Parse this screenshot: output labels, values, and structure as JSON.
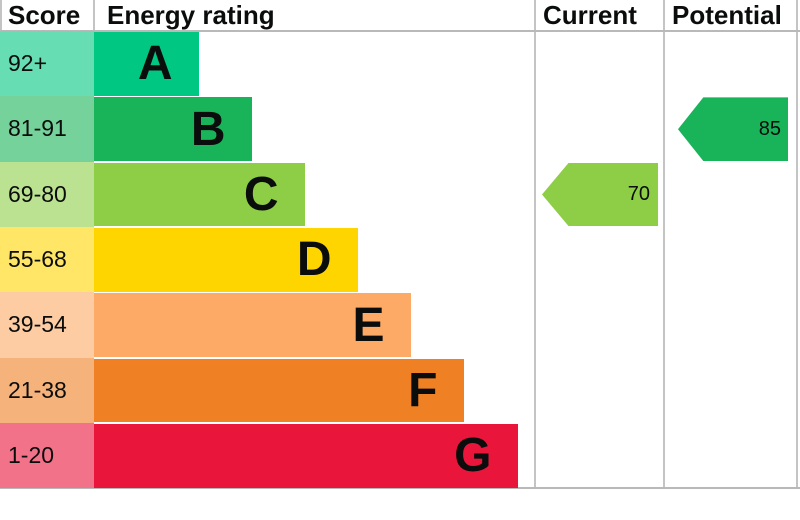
{
  "header": {
    "score_label": "Score",
    "rating_label": "Energy rating",
    "current_label": "Current",
    "potential_label": "Potential"
  },
  "bands": [
    {
      "score": "92+",
      "letter": "A",
      "color": "#00c781",
      "tint": "#66ddb3"
    },
    {
      "score": "81-91",
      "letter": "B",
      "color": "#19b459",
      "tint": "#75d29b"
    },
    {
      "score": "69-80",
      "letter": "C",
      "color": "#8dce46",
      "tint": "#bbe290"
    },
    {
      "score": "55-68",
      "letter": "D",
      "color": "#ffd500",
      "tint": "#ffe666"
    },
    {
      "score": "39-54",
      "letter": "E",
      "color": "#fcaa65",
      "tint": "#fdcca3"
    },
    {
      "score": "21-38",
      "letter": "F",
      "color": "#ef8023",
      "tint": "#f5b37b"
    },
    {
      "score": "1-20",
      "letter": "G",
      "color": "#e9153b",
      "tint": "#f27389"
    }
  ],
  "current": {
    "value": "70",
    "band": "C",
    "color": "#8dce46"
  },
  "potential": {
    "value": "85",
    "band": "B",
    "color": "#19b459"
  },
  "chart_data": {
    "type": "bar",
    "title": "Energy rating",
    "orientation": "horizontal",
    "columns": [
      "Score",
      "Energy rating",
      "Current",
      "Potential"
    ],
    "categories": [
      "A",
      "B",
      "C",
      "D",
      "E",
      "F",
      "G"
    ],
    "score_ranges": [
      "92+",
      "81-91",
      "69-80",
      "55-68",
      "39-54",
      "21-38",
      "1-20"
    ],
    "band_colors": [
      "#00c781",
      "#19b459",
      "#8dce46",
      "#ffd500",
      "#fcaa65",
      "#ef8023",
      "#e9153b"
    ],
    "bar_lengths_relative": [
      1,
      1.5,
      2,
      2.5,
      3,
      3.5,
      4
    ],
    "markers": [
      {
        "label": "Current",
        "value": 70,
        "band": "C",
        "color": "#8dce46"
      },
      {
        "label": "Potential",
        "value": 85,
        "band": "B",
        "color": "#19b459"
      }
    ],
    "grid": false,
    "legend_position": "none"
  }
}
